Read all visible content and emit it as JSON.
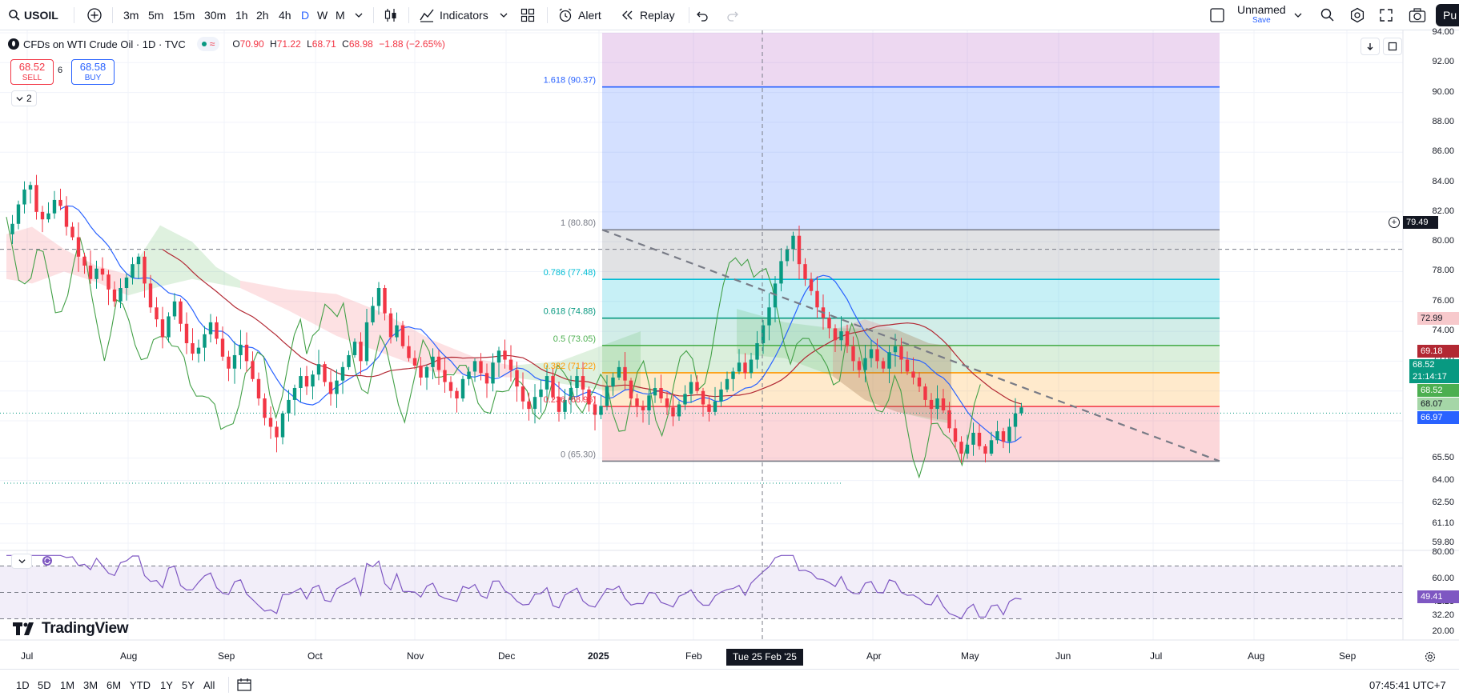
{
  "toolbar": {
    "symbol": "USOIL",
    "intervals": [
      "3m",
      "5m",
      "15m",
      "30m",
      "1h",
      "2h",
      "4h",
      "D",
      "W",
      "M"
    ],
    "active_interval": "D",
    "indicators": "Indicators",
    "alert": "Alert",
    "replay": "Replay",
    "layout_name": "Unnamed",
    "layout_save": "Save",
    "publish": "Pu"
  },
  "legend": {
    "title": "CFDs on WTI Crude Oil · 1D · TVC",
    "open_label": "O",
    "open": "70.90",
    "high_label": "H",
    "high": "71.22",
    "low_label": "L",
    "low": "68.71",
    "close_label": "C",
    "close": "68.98",
    "change": "−1.88 (−2.65%)"
  },
  "trade": {
    "sell_price": "68.52",
    "sell_label": "SELL",
    "spread": "6",
    "buy_price": "68.58",
    "buy_label": "BUY",
    "collapsed_count": "2"
  },
  "fib_levels": [
    {
      "label": "1.618 (90.37)",
      "price": 90.37,
      "color": "#2962ff"
    },
    {
      "label": "1 (80.80)",
      "price": 80.8,
      "color": "#787b86"
    },
    {
      "label": "0.786 (77.48)",
      "price": 77.48,
      "color": "#00bcd4"
    },
    {
      "label": "0.618 (74.88)",
      "price": 74.88,
      "color": "#089981"
    },
    {
      "label": "0.5 (73.05)",
      "price": 73.05,
      "color": "#4caf50"
    },
    {
      "label": "0.382 (71.22)",
      "price": 71.22,
      "color": "#ff9800"
    },
    {
      "label": "0.236 (68.96)",
      "price": 68.96,
      "color": "#f23645"
    },
    {
      "label": "0 (65.30)",
      "price": 65.3,
      "color": "#787b86"
    }
  ],
  "price_axis": [
    "94.00",
    "92.00",
    "90.00",
    "88.00",
    "86.00",
    "84.00",
    "82.00",
    "80.00",
    "78.00",
    "76.00",
    "74.00",
    "72.00",
    "70.00",
    "68.00",
    "65.50",
    "64.00",
    "62.50",
    "61.10",
    "59.80"
  ],
  "price_tags": {
    "crosshair": "79.49",
    "ichimoku_a": "72.99",
    "kijun": "69.18",
    "last": "68.52",
    "countdown": "21:14:17",
    "bid": "68.52",
    "tenkan": "68.07",
    "low_line": "66.97"
  },
  "rsi_axis": [
    "80.00",
    "60.00",
    "42.28",
    "32.20",
    "20.00"
  ],
  "rsi_value": "49.41",
  "time_axis": [
    "Jul",
    "Aug",
    "Sep",
    "Oct",
    "Nov",
    "Dec",
    "2025",
    "Feb",
    "Apr",
    "May",
    "Jun",
    "Jul",
    "Aug",
    "Sep"
  ],
  "crosshair_date": "Tue 25 Feb '25",
  "brand": "TradingView",
  "ranges": [
    "1D",
    "5D",
    "1M",
    "3M",
    "6M",
    "YTD",
    "1Y",
    "5Y",
    "All"
  ],
  "clock": "07:45:41 UTC+7",
  "colors": {
    "up": "#089981",
    "down": "#f23645",
    "accent": "#2962ff",
    "rsi": "#7e57c2"
  }
}
